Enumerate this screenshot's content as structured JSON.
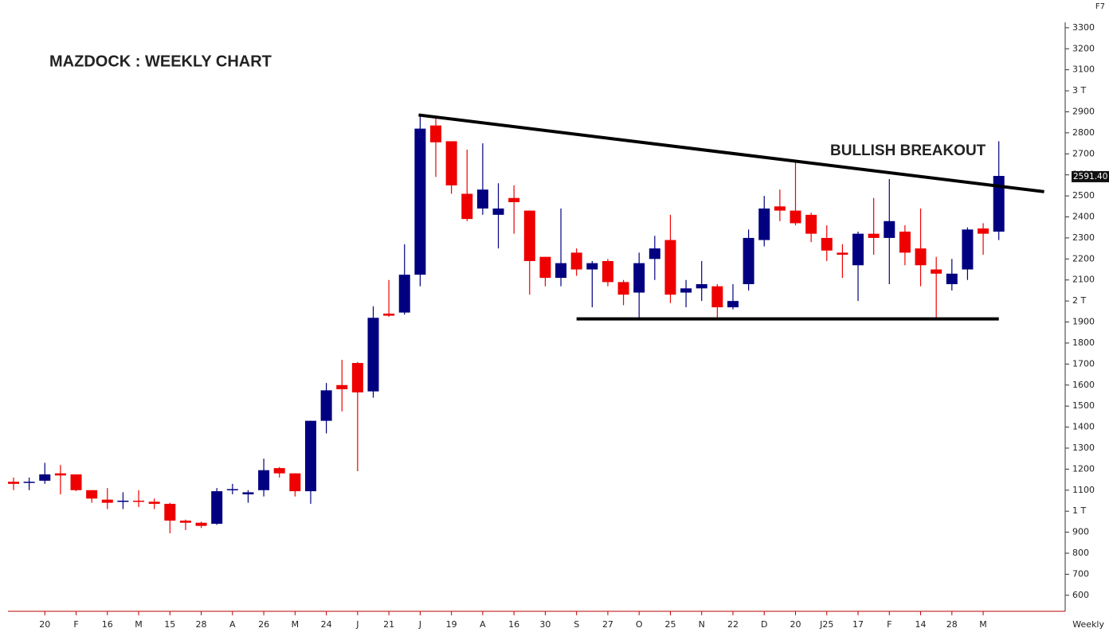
{
  "chart_data": {
    "type": "candlestick",
    "title": "MAZDOCK : WEEKLY CHART",
    "annotation": "BULLISH BREAKOUT",
    "corner_label": "F7",
    "period_label": "Weekly",
    "up_color": "#000080",
    "down_color": "#ee0000",
    "categories": [
      null,
      null,
      "20",
      null,
      "F",
      null,
      "16",
      null,
      "M",
      null,
      "15",
      null,
      "28",
      null,
      "A",
      null,
      "26",
      null,
      "M",
      null,
      "24",
      null,
      "J",
      null,
      "21",
      null,
      "J",
      null,
      "19",
      null,
      "A",
      null,
      "16",
      null,
      "30",
      null,
      "S",
      null,
      "27",
      null,
      "O",
      null,
      "25",
      null,
      "N",
      null,
      "22",
      null,
      "D",
      null,
      "20",
      null,
      "J25",
      null,
      "17",
      null,
      "F",
      null,
      "14",
      null,
      "28",
      null,
      "M",
      null
    ],
    "open": [
      1140,
      1135,
      1145,
      1180,
      1175,
      1100,
      1055,
      1045,
      1050,
      1045,
      1035,
      955,
      945,
      940,
      1100,
      1080,
      1100,
      1205,
      1180,
      1095,
      1430,
      1600,
      1705,
      1570,
      1940,
      1945,
      2125,
      2835,
      2760,
      2510,
      2440,
      2410,
      2490,
      2430,
      2210,
      2110,
      2230,
      2150,
      2190,
      2090,
      2040,
      2200,
      2290,
      2040,
      2060,
      2070,
      1970,
      2080,
      2290,
      2450,
      2430,
      2410,
      2300,
      2230,
      2170,
      2320,
      2300,
      2330,
      2250,
      2150,
      2080,
      2150,
      2345,
      2330
    ],
    "high": [
      1160,
      1160,
      1230,
      1220,
      1175,
      1100,
      1110,
      1090,
      1100,
      1060,
      1040,
      960,
      950,
      1110,
      1130,
      1100,
      1250,
      1210,
      1180,
      1430,
      1610,
      1720,
      1710,
      1975,
      2100,
      2270,
      2890,
      2880,
      2760,
      2720,
      2750,
      2560,
      2550,
      2430,
      2210,
      2440,
      2250,
      2190,
      2200,
      2100,
      2230,
      2310,
      2410,
      2100,
      2190,
      2080,
      2080,
      2340,
      2500,
      2530,
      2660,
      2420,
      2360,
      2270,
      2330,
      2490,
      2580,
      2360,
      2440,
      2210,
      2200,
      2350,
      2370,
      2760
    ],
    "low": [
      1100,
      1100,
      1130,
      1080,
      1095,
      1040,
      1010,
      1010,
      1020,
      1010,
      895,
      910,
      920,
      935,
      1080,
      1040,
      1070,
      1160,
      1070,
      1035,
      1370,
      1475,
      1190,
      1540,
      1925,
      1935,
      2070,
      2590,
      2510,
      2380,
      2410,
      2250,
      2320,
      2030,
      2070,
      2070,
      2120,
      1970,
      2070,
      1980,
      1920,
      2100,
      1990,
      1970,
      2000,
      1920,
      1960,
      2050,
      2260,
      2380,
      2360,
      2280,
      2190,
      2110,
      2000,
      2220,
      2080,
      2170,
      2070,
      1920,
      2050,
      2100,
      2220,
      2290
    ],
    "close": [
      1130,
      1140,
      1175,
      1170,
      1100,
      1060,
      1040,
      1050,
      1045,
      1035,
      955,
      945,
      930,
      1095,
      1105,
      1090,
      1195,
      1180,
      1095,
      1430,
      1575,
      1580,
      1565,
      1920,
      1930,
      2125,
      2820,
      2755,
      2550,
      2390,
      2530,
      2440,
      2470,
      2190,
      2110,
      2180,
      2150,
      2180,
      2090,
      2030,
      2180,
      2250,
      2030,
      2060,
      2080,
      1970,
      2000,
      2300,
      2440,
      2430,
      2370,
      2320,
      2240,
      2220,
      2320,
      2300,
      2380,
      2230,
      2170,
      2130,
      2130,
      2340,
      2320,
      2595
    ],
    "ylim": [
      535,
      3360
    ],
    "yticks": [
      600,
      700,
      800,
      900,
      {
        "value": 1000,
        "label": "1 T"
      },
      1100,
      1200,
      1300,
      1400,
      1500,
      1600,
      1700,
      1800,
      1900,
      {
        "value": 2000,
        "label": "2 T"
      },
      2100,
      2200,
      2300,
      2400,
      2500,
      2600,
      2700,
      2800,
      2900,
      {
        "value": 3000,
        "label": "3 T"
      },
      3100,
      3200,
      3300
    ],
    "price_marker": {
      "value": 2591.4,
      "label": "2591.40"
    },
    "trendlines": [
      {
        "x": [
          25.9,
          65.9
        ],
        "y": [
          2885,
          2520
        ]
      },
      {
        "x": [
          36,
          63
        ],
        "y": [
          1915,
          1915
        ]
      }
    ]
  }
}
